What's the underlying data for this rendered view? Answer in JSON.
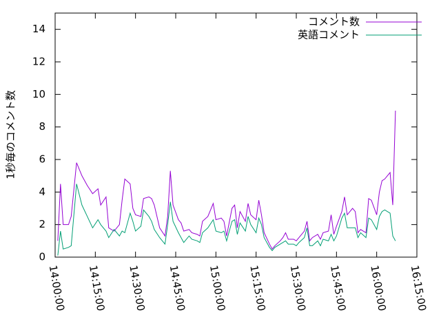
{
  "chart_data": {
    "type": "line",
    "y_label": "1秒毎のコメント数",
    "x": [
      "14:01:00",
      "14:02:00",
      "14:03:00",
      "14:05:00",
      "14:06:00",
      "14:08:00",
      "14:10:00",
      "14:12:00",
      "14:14:00",
      "14:16:00",
      "14:17:00",
      "14:19:00",
      "14:20:00",
      "14:22:00",
      "14:24:00",
      "14:25:00",
      "14:26:00",
      "14:28:00",
      "14:29:00",
      "14:30:00",
      "14:32:00",
      "14:33:00",
      "14:35:00",
      "14:36:00",
      "14:37:00",
      "14:39:00",
      "14:41:00",
      "14:42:00",
      "14:43:00",
      "14:44:00",
      "14:46:00",
      "14:47:00",
      "14:48:00",
      "14:50:00",
      "14:51:00",
      "14:53:00",
      "14:54:00",
      "14:55:00",
      "14:57:00",
      "14:59:00",
      "15:00:00",
      "15:02:00",
      "15:03:00",
      "15:04:00",
      "15:06:00",
      "15:07:00",
      "15:08:00",
      "15:09:00",
      "15:11:00",
      "15:12:00",
      "15:13:00",
      "15:15:00",
      "15:16:00",
      "15:17:00",
      "15:18:00",
      "15:20:00",
      "15:21:00",
      "15:22:00",
      "15:24:00",
      "15:25:00",
      "15:26:00",
      "15:27:00",
      "15:29:00",
      "15:30:00",
      "15:31:00",
      "15:33:00",
      "15:34:00",
      "15:35:00",
      "15:36:00",
      "15:38:00",
      "15:39:00",
      "15:40:00",
      "15:42:00",
      "15:43:00",
      "15:44:00",
      "15:45:00",
      "15:47:00",
      "15:48:00",
      "15:49:00",
      "15:51:00",
      "15:52:00",
      "15:53:00",
      "15:54:00",
      "15:56:00",
      "15:57:00",
      "15:58:00",
      "16:00:00",
      "16:01:00",
      "16:02:00",
      "16:03:00",
      "16:05:00",
      "16:06:00",
      "16:07:00"
    ],
    "series": [
      {
        "name": "コメント数",
        "color": "#9400d3",
        "values": [
          1.0,
          4.5,
          2.0,
          2.0,
          2.5,
          5.8,
          5.0,
          4.4,
          3.9,
          4.2,
          3.2,
          3.7,
          1.8,
          1.6,
          2.0,
          3.5,
          4.8,
          4.5,
          3.0,
          2.6,
          2.5,
          3.6,
          3.7,
          3.6,
          3.2,
          1.8,
          1.3,
          2.5,
          5.3,
          3.2,
          2.3,
          2.1,
          1.6,
          1.7,
          1.5,
          1.4,
          1.3,
          2.2,
          2.5,
          3.3,
          2.3,
          2.4,
          2.2,
          1.3,
          3.0,
          3.2,
          1.8,
          2.8,
          2.2,
          3.3,
          2.6,
          2.3,
          3.5,
          2.6,
          1.5,
          0.8,
          0.5,
          0.7,
          1.0,
          1.2,
          1.5,
          1.1,
          1.1,
          1.0,
          1.2,
          1.6,
          2.2,
          1.0,
          1.2,
          1.4,
          1.1,
          1.5,
          1.6,
          2.6,
          1.4,
          1.9,
          2.8,
          3.7,
          2.6,
          3.0,
          2.8,
          1.5,
          1.7,
          1.5,
          3.6,
          3.5,
          2.6,
          4.0,
          4.7,
          4.8,
          5.2,
          3.2,
          9.0
        ]
      },
      {
        "name": "英語コメント",
        "color": "#009e73",
        "values": [
          0.1,
          1.6,
          0.5,
          0.6,
          0.7,
          4.5,
          3.2,
          2.5,
          1.8,
          2.3,
          2.0,
          1.6,
          1.2,
          1.7,
          1.3,
          1.6,
          1.5,
          2.7,
          2.2,
          1.6,
          1.9,
          2.9,
          2.5,
          2.2,
          1.7,
          1.2,
          0.8,
          2.0,
          3.4,
          2.2,
          1.5,
          1.2,
          0.9,
          1.3,
          1.1,
          1.0,
          0.9,
          1.5,
          1.8,
          2.3,
          1.6,
          1.5,
          1.6,
          1.0,
          2.2,
          2.3,
          1.4,
          2.1,
          1.6,
          2.5,
          2.0,
          1.5,
          2.4,
          2.0,
          1.2,
          0.6,
          0.4,
          0.6,
          0.8,
          0.9,
          1.0,
          0.8,
          0.8,
          0.7,
          0.9,
          1.2,
          1.8,
          0.7,
          0.7,
          1.0,
          0.7,
          1.1,
          1.0,
          1.4,
          1.0,
          1.3,
          2.4,
          2.7,
          1.8,
          1.8,
          1.8,
          1.2,
          1.5,
          1.2,
          2.4,
          2.3,
          1.7,
          2.5,
          2.8,
          2.9,
          2.7,
          1.3,
          1.0
        ]
      }
    ],
    "xlim": [
      "14:00:00",
      "16:15:00"
    ],
    "xticks": [
      "14:00:00",
      "14:15:00",
      "14:30:00",
      "14:45:00",
      "15:00:00",
      "15:15:00",
      "15:30:00",
      "15:45:00",
      "16:00:00",
      "16:15:00"
    ],
    "ylim": [
      0,
      15
    ],
    "yticks": [
      0,
      2,
      4,
      6,
      8,
      10,
      12,
      14
    ],
    "grid": false,
    "legend": "top-right"
  }
}
